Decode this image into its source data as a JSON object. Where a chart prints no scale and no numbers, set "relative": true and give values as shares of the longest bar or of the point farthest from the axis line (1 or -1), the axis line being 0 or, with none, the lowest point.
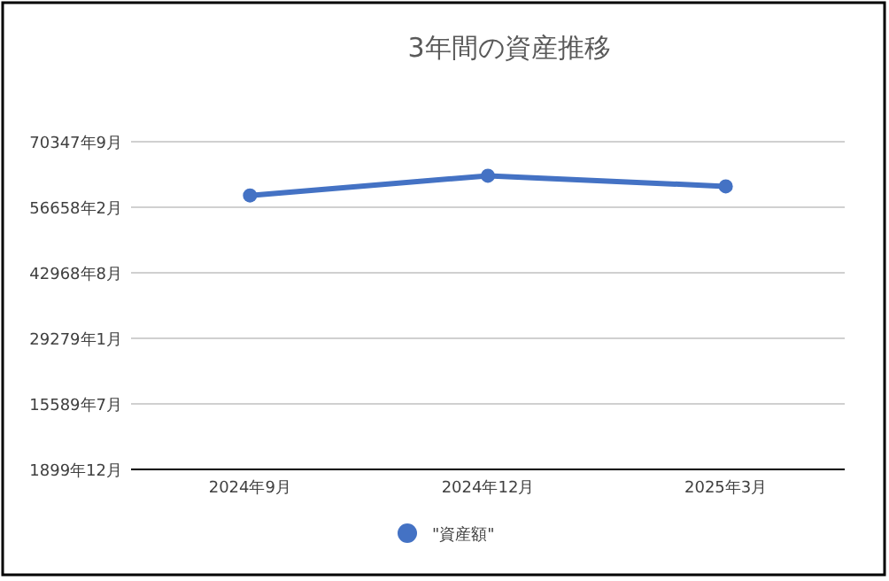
{
  "chart_data": {
    "type": "line",
    "title": "3年間の資産推移",
    "relative": true,
    "categories": [
      "2024年9月",
      "2024年12月",
      "2025年3月"
    ],
    "series": [
      {
        "name": "\"資産額\"",
        "color": "#4472c4",
        "values": [
          0.933,
          1,
          0.964
        ]
      }
    ],
    "annotations": [
      "1899年12月",
      "15589年7月",
      "29279年1月",
      "42968年8月",
      "56658年2月",
      "70347年9月"
    ],
    "grid": "y",
    "legend": "bottom",
    "marker": "circle",
    "line_style": "solid"
  }
}
